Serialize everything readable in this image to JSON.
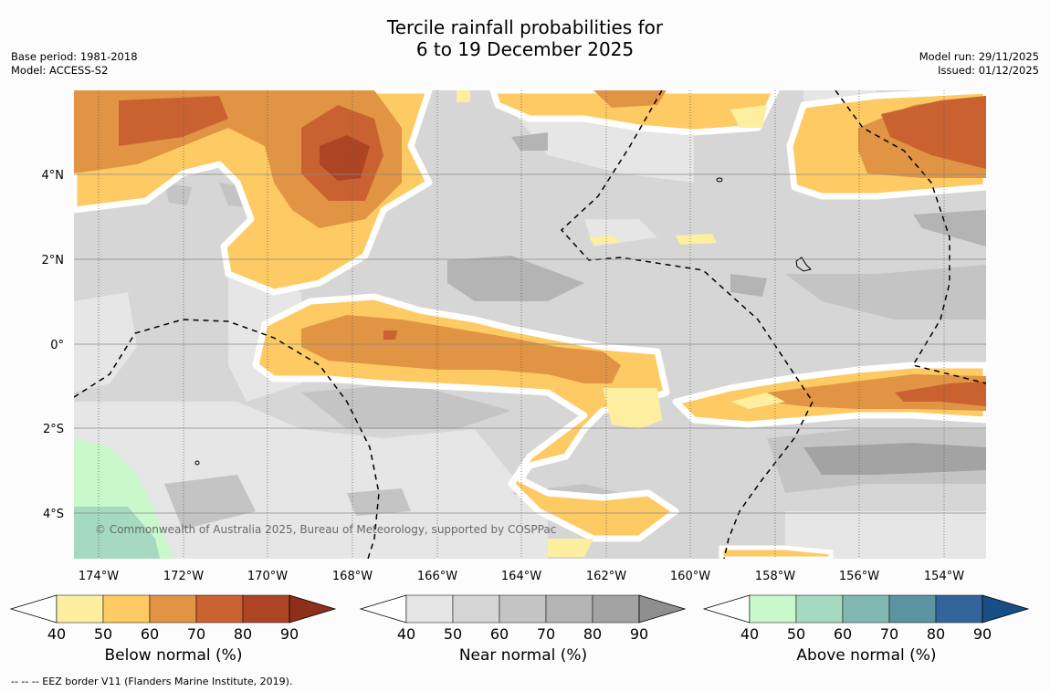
{
  "title_line1": "Tercile rainfall probabilities for",
  "title_line2": "6 to 19 December 2025",
  "base_period": "Base period: 1981-2018",
  "model": "Model: ACCESS-S2",
  "model_run": "Model run: 29/11/2025",
  "issued": "Issued: 01/12/2025",
  "copyright": "© Commonwealth of Australia 2025, Bureau of Meteorology, supported by COSPPac",
  "footer": "--  --  -- EEZ border V11 (Flanders Marine Institute, 2019).",
  "lon_labels": [
    "174°W",
    "172°W",
    "170°W",
    "168°W",
    "166°W",
    "164°W",
    "162°W",
    "160°W",
    "158°W",
    "156°W",
    "154°W"
  ],
  "lat_labels": [
    "4°N",
    "2°N",
    "0°",
    "2°S",
    "4°S"
  ],
  "colorbars": [
    {
      "label": "Below normal (%)",
      "ticks": [
        "40",
        "50",
        "60",
        "70",
        "80",
        "90"
      ],
      "colors": [
        "#fdeea0",
        "#fdca63",
        "#e09444",
        "#ca6131",
        "#ad4525",
        "#8d2f1b"
      ]
    },
    {
      "label": "Near normal (%)",
      "ticks": [
        "40",
        "50",
        "60",
        "70",
        "80",
        "90"
      ],
      "colors": [
        "#e6e6e6",
        "#d6d6d6",
        "#c4c4c4",
        "#b4b4b4",
        "#a3a3a3",
        "#8f8f8f"
      ]
    },
    {
      "label": "Above normal (%)",
      "ticks": [
        "40",
        "50",
        "60",
        "70",
        "80",
        "90"
      ],
      "colors": [
        "#c9f8cb",
        "#a5d9c0",
        "#81b8b1",
        "#5c93a1",
        "#33659b",
        "#174e86"
      ]
    }
  ],
  "colors": {
    "map_background": "#d6d6d6",
    "border": "#000000"
  }
}
